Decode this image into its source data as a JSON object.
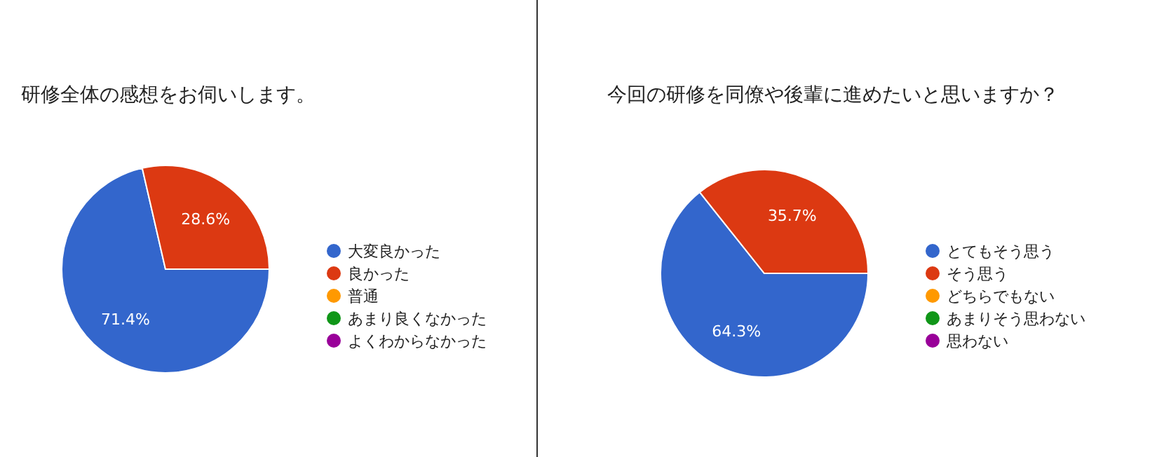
{
  "chart_data": [
    {
      "type": "pie",
      "title": "研修全体の感想をお伺いします。",
      "categories": [
        "大変良かった",
        "良かった",
        "普通",
        "あまり良くなかった",
        "よくわからなかった"
      ],
      "values": [
        71.4,
        28.6,
        0,
        0,
        0
      ],
      "value_labels": [
        "71.4%",
        "28.6%",
        null,
        null,
        null
      ],
      "colors": [
        "#3366cc",
        "#dc3912",
        "#ff9900",
        "#109618",
        "#990099"
      ],
      "legend": "right"
    },
    {
      "type": "pie",
      "title": "今回の研修を同僚や後輩に進めたいと思いますか？",
      "categories": [
        "とてもそう思う",
        "そう思う",
        "どちらでもない",
        "あまりそう思わない",
        "思わない"
      ],
      "values": [
        64.3,
        35.7,
        0,
        0,
        0
      ],
      "value_labels": [
        "64.3%",
        "35.7%",
        null,
        null,
        null
      ],
      "colors": [
        "#3366cc",
        "#dc3912",
        "#ff9900",
        "#109618",
        "#990099"
      ],
      "legend": "right"
    }
  ]
}
